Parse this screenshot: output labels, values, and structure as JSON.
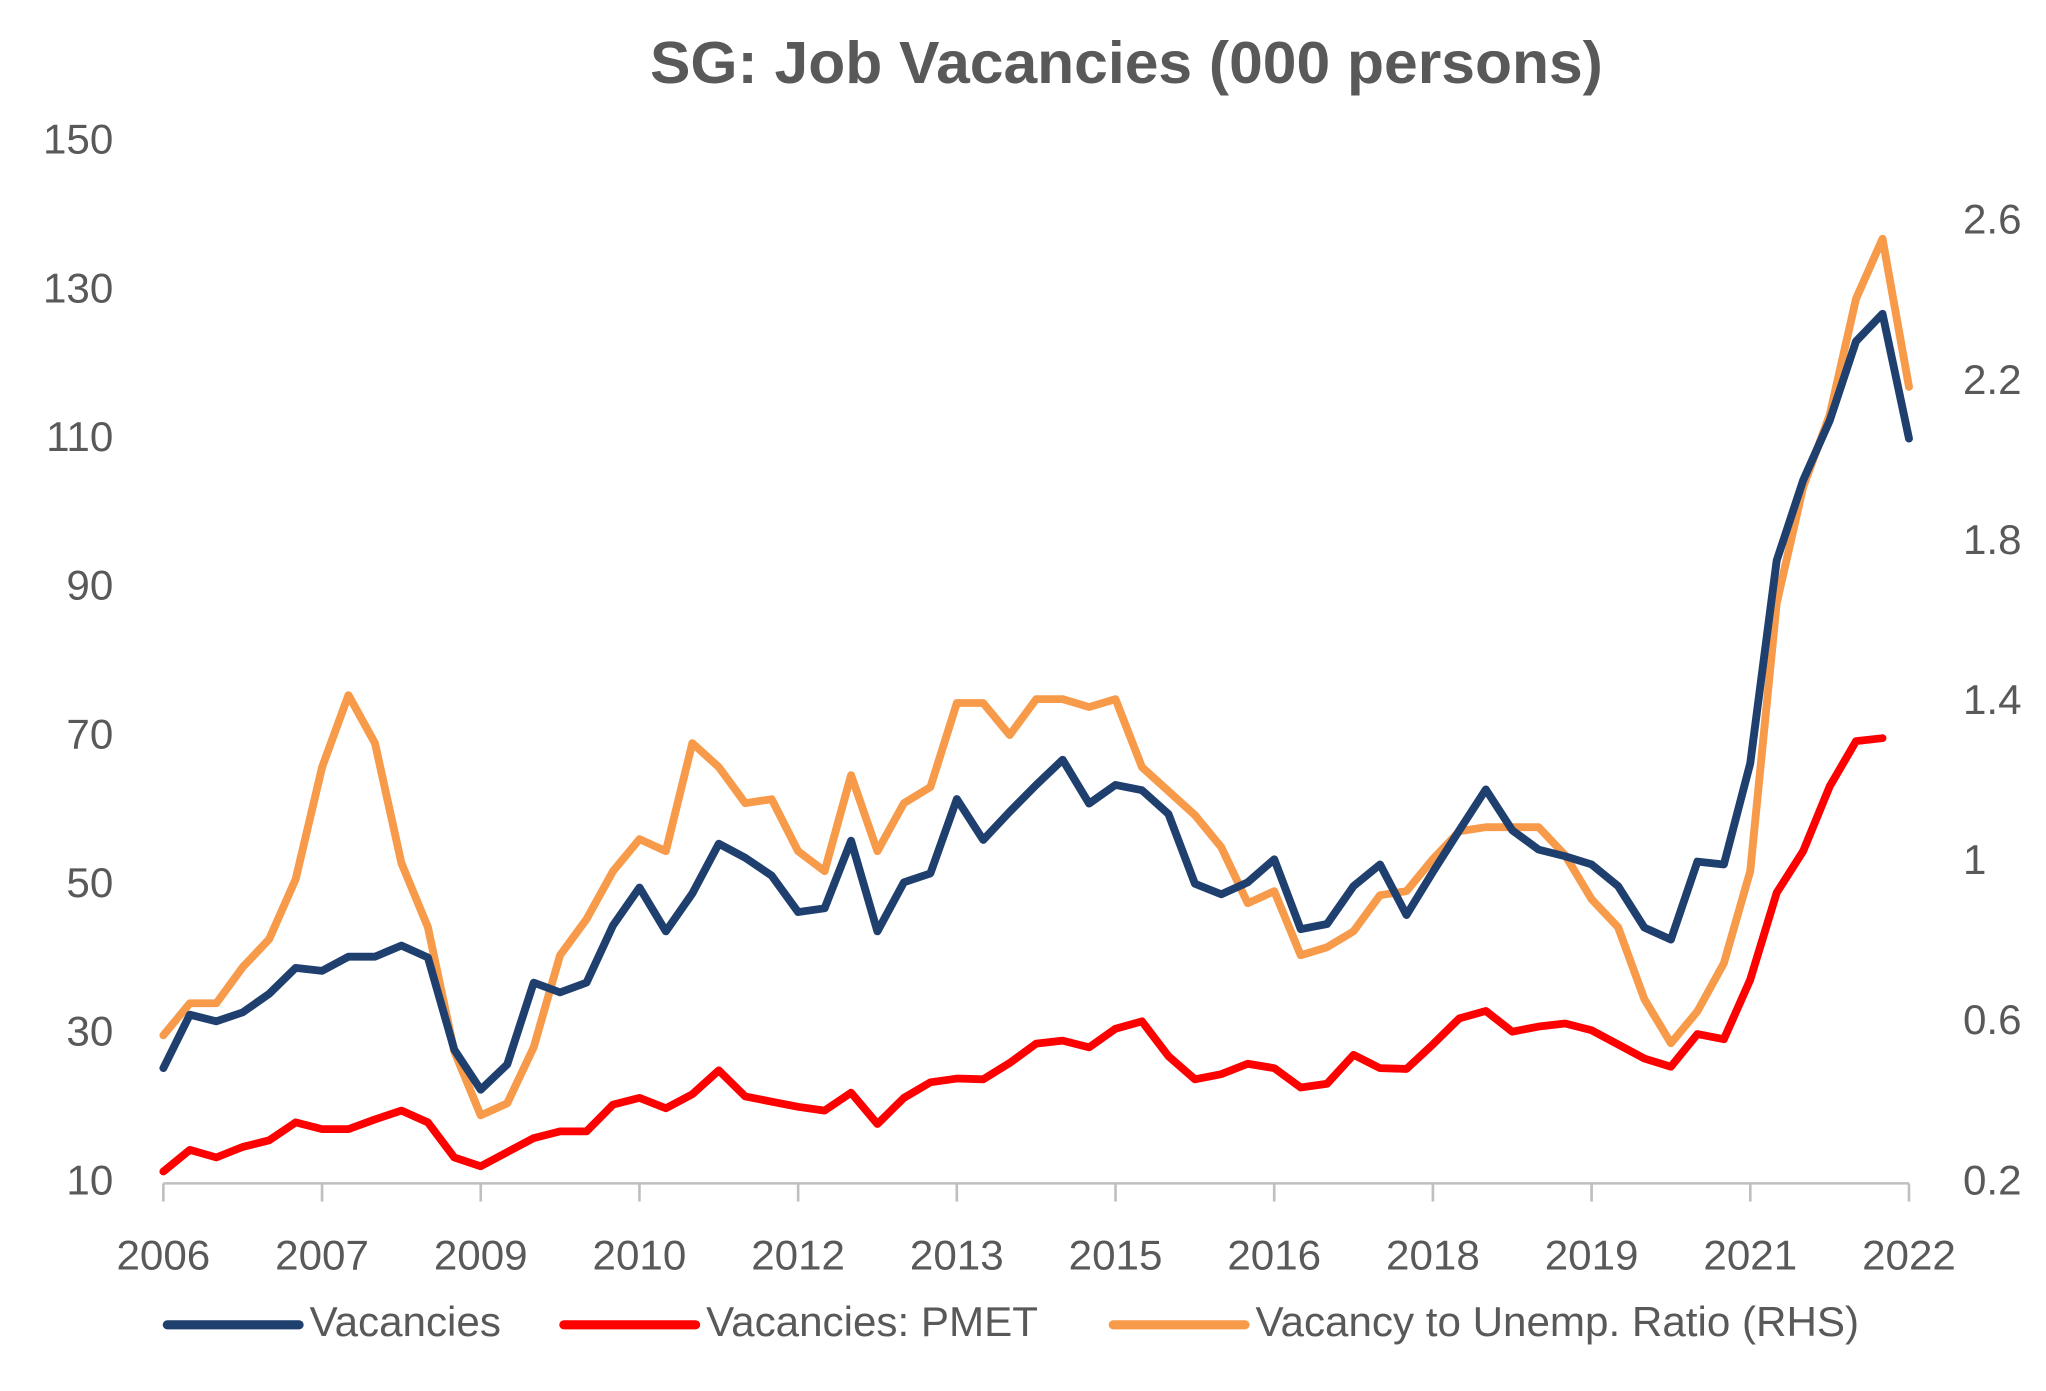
{
  "chart_data": {
    "type": "line",
    "title": "SG: Job Vacancies (000 persons)",
    "categories": [
      "2006",
      null,
      null,
      null,
      null,
      null,
      "2007",
      null,
      null,
      null,
      null,
      null,
      "2009",
      null,
      null,
      null,
      null,
      null,
      "2010",
      null,
      null,
      null,
      null,
      null,
      "2012",
      null,
      null,
      null,
      null,
      null,
      "2013",
      null,
      null,
      null,
      null,
      null,
      "2015",
      null,
      null,
      null,
      null,
      null,
      "2016",
      null,
      null,
      null,
      null,
      null,
      "2018",
      null,
      null,
      null,
      null,
      null,
      "2019",
      null,
      null,
      null,
      null,
      null,
      "2021",
      null,
      null,
      null,
      null,
      null,
      "2022"
    ],
    "ylim": [
      10,
      150
    ],
    "yticks": [
      10,
      30,
      50,
      70,
      90,
      110,
      130,
      150
    ],
    "y2lim": [
      0.2,
      2.8
    ],
    "y2ticks": [
      0.2,
      0.6,
      1.0,
      1.4,
      1.8,
      2.2,
      2.6
    ],
    "legend": "bottom",
    "grid": false,
    "series": [
      {
        "name": "Vacancies",
        "color": "#1f3f6e",
        "values": [
          25.5,
          32.7,
          31.8,
          33,
          35.5,
          39,
          38.6,
          40.5,
          40.5,
          42,
          40.4,
          28,
          22.6,
          26,
          37,
          35.7,
          37,
          44.7,
          49.8,
          43.9,
          49,
          55.7,
          53.8,
          51.4,
          46.5,
          47,
          56.1,
          43.9,
          50.5,
          51.7,
          61.7,
          56.2,
          60,
          63.6,
          67,
          61.1,
          63.6,
          62.9,
          59.7,
          50.3,
          48.9,
          50.5,
          53.6,
          44.2,
          44.9,
          50,
          52.9,
          46.1,
          51.9,
          57.5,
          63,
          57.5,
          54.9,
          54,
          52.9,
          50,
          44.4,
          42.8,
          53.3,
          52.9,
          66.5,
          93.8,
          104.6,
          112.6,
          123.3,
          127,
          110.2
        ]
      },
      {
        "name": "Vacancies: PMET",
        "color": "#ff0000",
        "values": [
          11.6,
          14.5,
          13.5,
          14.9,
          15.8,
          18.2,
          17.3,
          17.3,
          18.6,
          19.8,
          18.2,
          13.5,
          12.3,
          14.2,
          16.1,
          17,
          17,
          20.6,
          21.5,
          20.1,
          22,
          25.2,
          21.7,
          21,
          20.3,
          19.8,
          22.2,
          18,
          21.5,
          23.6,
          24.1,
          24,
          26.2,
          28.8,
          29.2,
          28.3,
          30.8,
          31.8,
          27.1,
          24,
          24.7,
          26.1,
          25.5,
          22.9,
          23.4,
          27.3,
          25.5,
          25.4,
          28.7,
          32.2,
          33.2,
          30.4,
          31.1,
          31.5,
          30.6,
          28.7,
          26.8,
          25.7,
          30.1,
          29.4,
          37.4,
          49.1,
          54.7,
          63.4,
          69.5,
          69.9,
          null
        ]
      },
      {
        "name": "Vacancy to Unemp. Ratio (RHS)",
        "color": "#f79a4a",
        "axis": "y2",
        "values": [
          0.57,
          0.65,
          0.65,
          0.74,
          0.81,
          0.96,
          1.24,
          1.42,
          1.3,
          1.0,
          0.84,
          0.53,
          0.37,
          0.4,
          0.54,
          0.77,
          0.86,
          0.98,
          1.06,
          1.03,
          1.3,
          1.24,
          1.15,
          1.16,
          1.03,
          0.98,
          1.22,
          1.03,
          1.15,
          1.19,
          1.4,
          1.4,
          1.32,
          1.41,
          1.41,
          1.39,
          1.41,
          1.24,
          1.18,
          1.12,
          1.04,
          0.9,
          0.93,
          0.77,
          0.79,
          0.83,
          0.92,
          0.93,
          1.01,
          1.08,
          1.09,
          1.09,
          1.09,
          1.02,
          0.91,
          0.84,
          0.66,
          0.55,
          0.63,
          0.75,
          0.98,
          1.65,
          1.94,
          2.12,
          2.41,
          2.56,
          2.19
        ]
      }
    ]
  }
}
